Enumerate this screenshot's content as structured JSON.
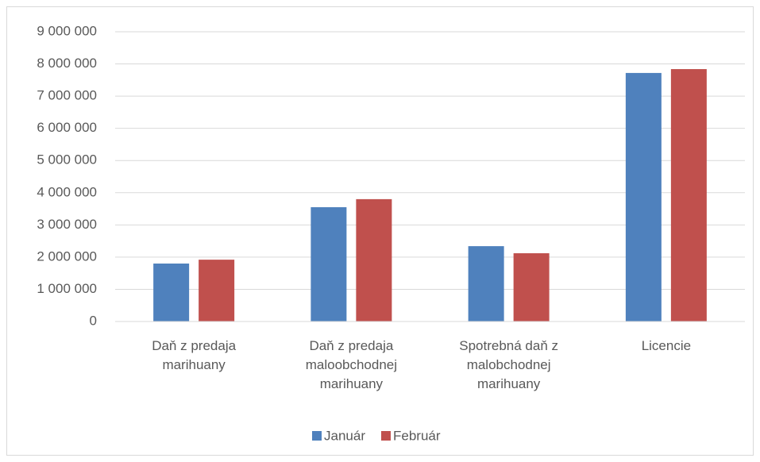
{
  "chart_data": {
    "type": "bar",
    "categories": [
      "Daň z predaja marihuany",
      "Daň z predaja maloobchodnej marihuany",
      "Spotrebná daň z malobchodnej marihuany",
      "Licencie"
    ],
    "series": [
      {
        "name": "Január",
        "color": "#4f81bd",
        "values": [
          1800000,
          3550000,
          2340000,
          7720000
        ]
      },
      {
        "name": "Február",
        "color": "#c0504d",
        "values": [
          1920000,
          3800000,
          2120000,
          7840000
        ]
      }
    ],
    "ylim": [
      0,
      9000000
    ],
    "yticks": [
      0,
      {
        "value": 1000000,
        "label": "1 000 000"
      },
      {
        "value": 2000000,
        "label": "2 000 000"
      },
      {
        "value": 3000000,
        "label": "3 000 000"
      },
      {
        "value": 4000000,
        "label": "4 000 000"
      },
      {
        "value": 5000000,
        "label": "5 000 000"
      },
      {
        "value": 6000000,
        "label": "6 000 000"
      },
      {
        "value": 7000000,
        "label": "7 000 000"
      },
      {
        "value": 8000000,
        "label": "8 000 000"
      },
      {
        "value": 9000000,
        "label": "9 000 000"
      }
    ],
    "grid": true,
    "legend": "bottom"
  }
}
